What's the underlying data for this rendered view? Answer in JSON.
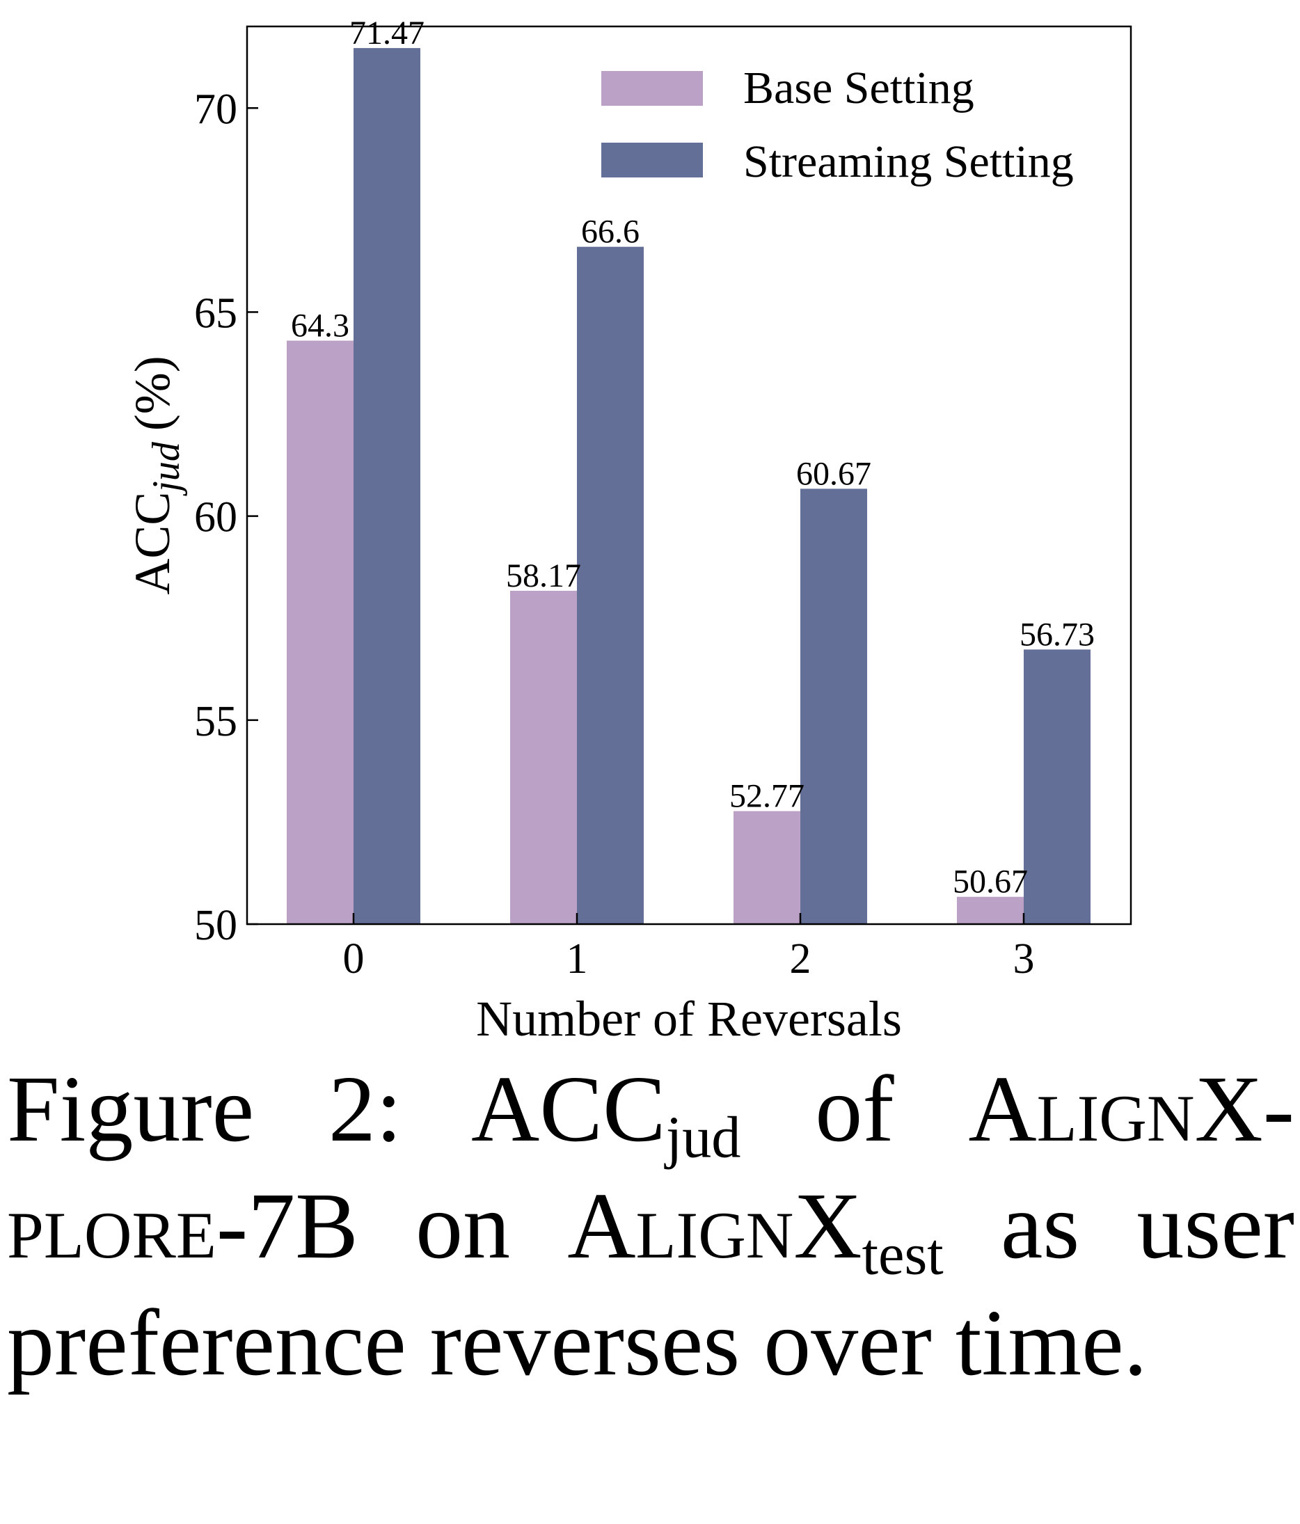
{
  "chart_data": {
    "type": "bar",
    "categories": [
      "0",
      "1",
      "2",
      "3"
    ],
    "series": [
      {
        "name": "Base Setting",
        "color": "#bca1c7",
        "values": [
          64.3,
          58.17,
          52.77,
          50.67
        ],
        "labels": [
          "64.3",
          "58.17",
          "52.77",
          "50.67"
        ]
      },
      {
        "name": "Streaming Setting",
        "color": "#636f97",
        "values": [
          71.47,
          66.6,
          60.67,
          56.73
        ],
        "labels": [
          "71.47",
          "66.6",
          "60.67",
          "56.73"
        ]
      }
    ],
    "xlabel": "Number of Reversals",
    "ylabel_main": "ACC",
    "ylabel_sub": "jud",
    "ylabel_unit": "(%)",
    "ylim": [
      50,
      72
    ],
    "yticks": [
      "50",
      "55",
      "60",
      "65",
      "70"
    ],
    "legend_position": "top-right",
    "grid": false
  },
  "caption": {
    "label": "Figure 2:",
    "acc": "ACC",
    "acc_sub": "jud",
    "of": "of",
    "model": "AlignX-plore-7B",
    "on": "on",
    "dataset": "AlignX",
    "dataset_sub": "test",
    "rest": "as user preference reverses over time."
  }
}
